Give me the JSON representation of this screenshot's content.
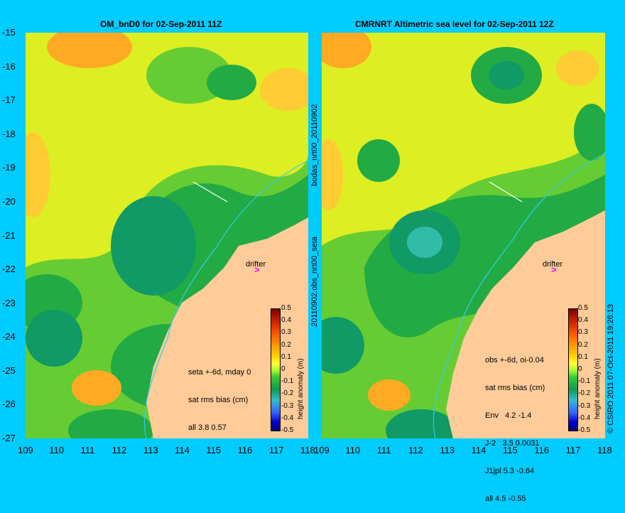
{
  "left_panel": {
    "title": "OM_bnD0 for 02-Sep-2011 11Z",
    "side_label": "bodas_nrt00_20110902",
    "annotation": [
      "seta +-6d, mday 0",
      "sat rms bias (cm)",
      "all 3.8 0.57"
    ]
  },
  "right_panel": {
    "title": "CMRNRT Altimetric sea level  for 02-Sep-2011 12Z",
    "side_label": "20110902.obs_nrt00_seta",
    "annotation": [
      "obs +-6d, oi-0.04",
      "sat rms bias (cm)",
      "Env   4.2 -1.4",
      "J-2   3.5 0.0031",
      "J1jpl 5.3 -0.64",
      "all 4.5 -0.55"
    ],
    "credit": "© CSIRO 2011  07-Oct-2011 19:26:13"
  },
  "drifter_label": "drifter",
  "drifter_symbol": ">",
  "y_ticks": [
    "-15",
    "-16",
    "-17",
    "-18",
    "-19",
    "-20",
    "-21",
    "-22",
    "-23",
    "-24",
    "-25",
    "-26",
    "-27"
  ],
  "x_ticks_left": [
    "109",
    "110",
    "111",
    "112",
    "113",
    "114",
    "115",
    "116",
    "117",
    "118"
  ],
  "x_ticks_right": [
    "109",
    "110",
    "111",
    "112",
    "113",
    "114",
    "115",
    "116",
    "117",
    "118"
  ],
  "colorbar": {
    "title": "height anomaly (m)",
    "ticks": [
      "0.5",
      "0.4",
      "0.3",
      "0.2",
      "0.1",
      "0",
      "-0.1",
      "-0.2",
      "-0.3",
      "-0.4",
      "-0.5"
    ]
  },
  "colors": {
    "background": "#00ccff",
    "land": "#ffcc99",
    "drifter": "#ff00ff"
  }
}
